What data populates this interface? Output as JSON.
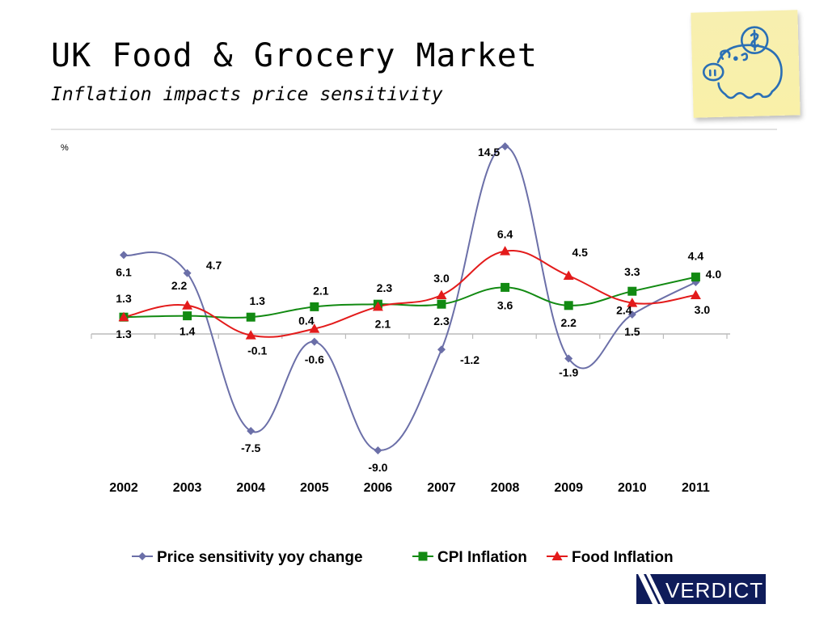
{
  "header": {
    "title": "UK Food & Grocery Market",
    "subtitle": "Inflation impacts price sensitivity"
  },
  "decorations": {
    "sticky_note_icon": "piggy-bank-with-dollar-coin",
    "logo_text": "VERDICT"
  },
  "colors": {
    "price_sensitivity": "#6b6fa8",
    "cpi": "#128a12",
    "food": "#e31b1b",
    "axis": "#bbbbbb"
  },
  "chart_data": {
    "type": "line",
    "title": "",
    "xlabel": "",
    "ylabel": "%",
    "ylim": [
      -9.0,
      14.5
    ],
    "grid": false,
    "legend": "bottom",
    "smooth": true,
    "categories": [
      "2002",
      "2003",
      "2004",
      "2005",
      "2006",
      "2007",
      "2008",
      "2009",
      "2010",
      "2011"
    ],
    "series": [
      {
        "name": "Price sensitivity yoy change",
        "marker": "diamond",
        "values": [
          6.1,
          4.7,
          -7.5,
          -0.6,
          -9.0,
          -1.2,
          14.5,
          -1.9,
          1.5,
          4.0
        ],
        "labels": [
          "6.1",
          "4.7",
          "-7.5",
          "-0.6",
          "-9.0",
          "-1.2",
          "14.5",
          "-1.9",
          "1.5",
          "4.0"
        ]
      },
      {
        "name": "CPI Inflation",
        "marker": "square",
        "values": [
          1.3,
          1.4,
          1.3,
          2.1,
          2.3,
          2.3,
          3.6,
          2.2,
          3.3,
          4.4
        ],
        "labels": [
          "1.3",
          "1.4",
          "1.3",
          "2.1",
          "2.3",
          "2.3",
          "3.6",
          "2.2",
          "3.3",
          "4.4"
        ]
      },
      {
        "name": "Food Inflation",
        "marker": "triangle",
        "values": [
          1.3,
          2.2,
          -0.1,
          0.4,
          2.1,
          3.0,
          6.4,
          4.5,
          2.4,
          3.0
        ],
        "labels": [
          "1.3",
          "2.2",
          "-0.1",
          "0.4",
          "2.1",
          "3.0",
          "6.4",
          "4.5",
          "2.4",
          "3.0"
        ]
      }
    ]
  }
}
